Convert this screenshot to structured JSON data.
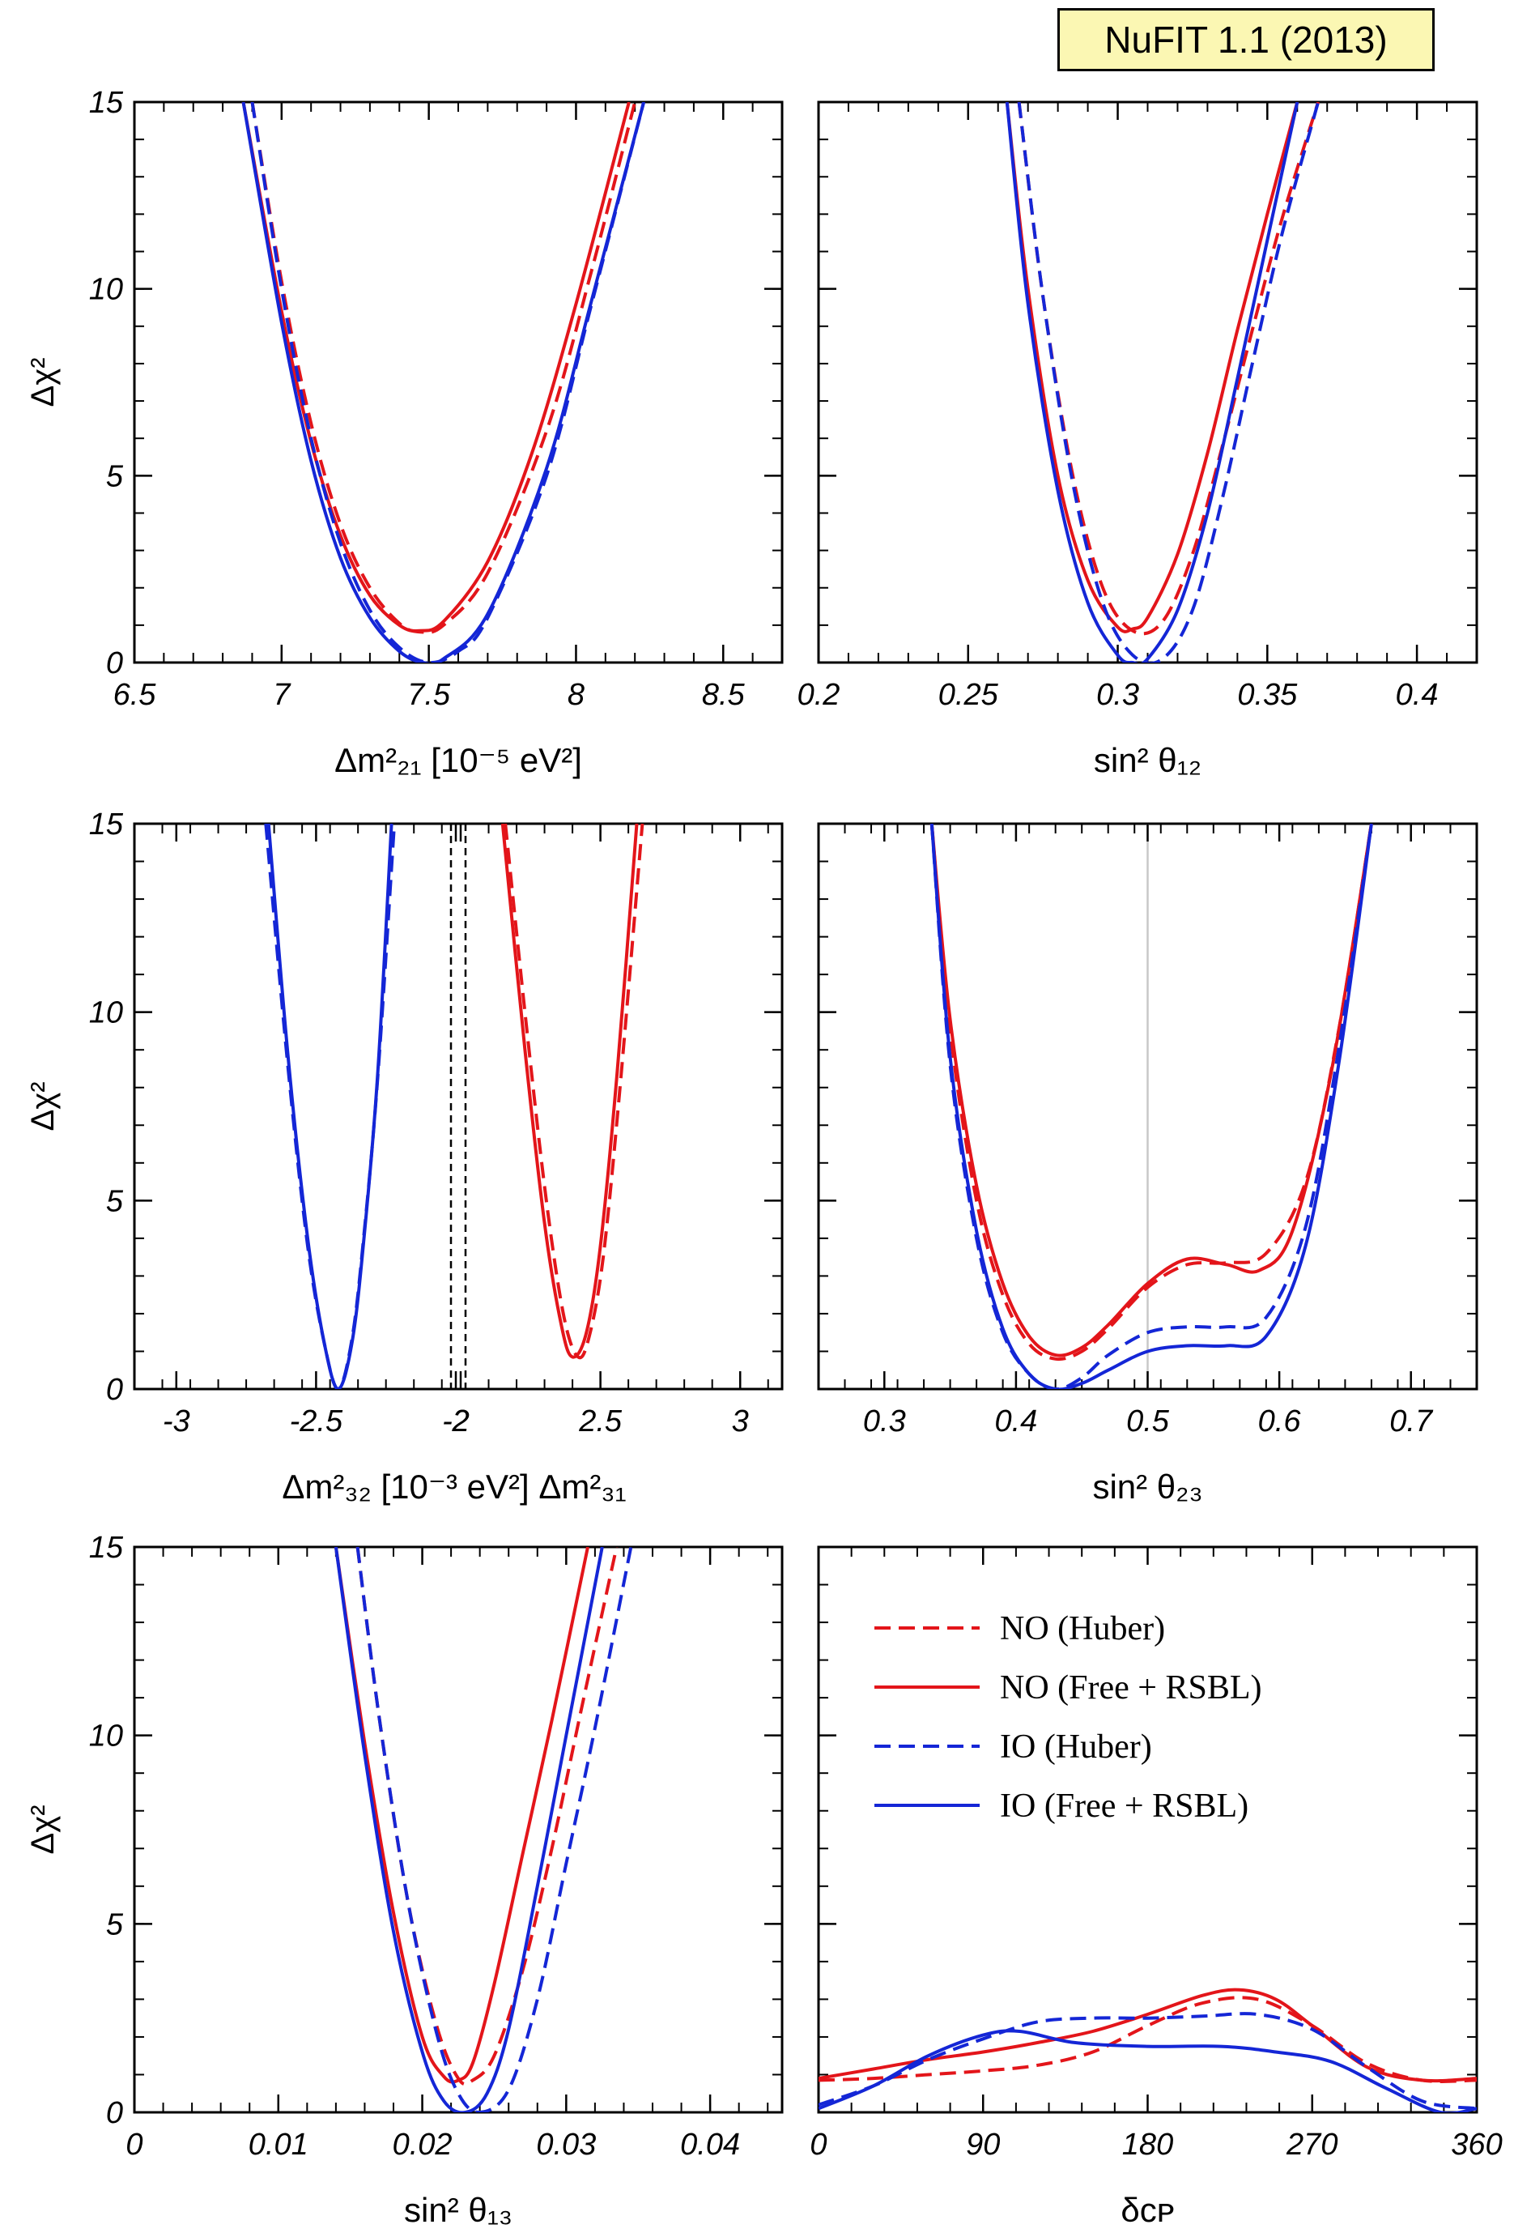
{
  "badge": "NuFIT 1.1 (2013)",
  "colors": {
    "NO": "#e3151a",
    "IO": "#1426d6",
    "axis": "#000000",
    "ref": "#c8c8c8"
  },
  "legend": {
    "placement": "top-right of bottom-right panel",
    "entries": [
      {
        "label": "NO (Huber)",
        "ordering": "NO",
        "style": "dashed"
      },
      {
        "label": "NO (Free + RSBL)",
        "ordering": "NO",
        "style": "solid"
      },
      {
        "label": "IO (Huber)",
        "ordering": "IO",
        "style": "dashed"
      },
      {
        "label": "IO (Free + RSBL)",
        "ordering": "IO",
        "style": "solid"
      }
    ]
  },
  "chart_data": [
    {
      "id": "dm21",
      "type": "line",
      "ylabel": "Δχ²",
      "xlabel": "Δm²₂₁ [10⁻⁵ eV²]",
      "xlim": [
        6.5,
        8.7
      ],
      "ylim": [
        0,
        15
      ],
      "xticks": [
        6.5,
        7,
        7.5,
        8,
        8.5
      ],
      "xticklabels": [
        "6.5",
        "7",
        "7.5",
        "8",
        "8.5"
      ],
      "yticks": [
        0,
        5,
        10,
        15
      ],
      "yticklabels": [
        "0",
        "5",
        "10",
        "15"
      ],
      "series": [
        {
          "ordering": "NO",
          "style": "dashed",
          "x": [
            6.9,
            7.0,
            7.1,
            7.2,
            7.3,
            7.4,
            7.47,
            7.55,
            7.7,
            7.9,
            8.05,
            8.2
          ],
          "y": [
            15,
            10.2,
            6.4,
            3.7,
            2.0,
            1.05,
            0.82,
            1.0,
            2.4,
            6.2,
            10.4,
            15
          ]
        },
        {
          "ordering": "NO",
          "style": "solid",
          "x": [
            6.87,
            7.0,
            7.1,
            7.2,
            7.3,
            7.4,
            7.47,
            7.55,
            7.7,
            7.85,
            8.0,
            8.18
          ],
          "y": [
            15,
            9.4,
            5.9,
            3.4,
            1.8,
            1.0,
            0.85,
            1.1,
            2.7,
            5.6,
            9.6,
            15
          ]
        },
        {
          "ordering": "IO",
          "style": "dashed",
          "x": [
            6.9,
            7.0,
            7.1,
            7.2,
            7.3,
            7.4,
            7.5,
            7.6,
            7.7,
            7.9,
            8.05,
            8.23
          ],
          "y": [
            15,
            10.0,
            6.0,
            3.2,
            1.4,
            0.4,
            0.0,
            0.3,
            1.2,
            5.0,
            9.5,
            15
          ]
        },
        {
          "ordering": "IO",
          "style": "solid",
          "x": [
            6.87,
            7.0,
            7.1,
            7.2,
            7.3,
            7.4,
            7.48,
            7.55,
            7.7,
            7.9,
            8.05,
            8.23
          ],
          "y": [
            15,
            9.1,
            5.4,
            2.8,
            1.2,
            0.3,
            0.0,
            0.1,
            1.3,
            5.2,
            9.6,
            15
          ]
        }
      ]
    },
    {
      "id": "th12",
      "type": "line",
      "xlabel": "sin² θ₁₂",
      "xlim": [
        0.2,
        0.42
      ],
      "ylim": [
        0,
        15
      ],
      "xticks": [
        0.2,
        0.25,
        0.3,
        0.35,
        0.4
      ],
      "xticklabels": [
        "0.2",
        "0.25",
        "0.3",
        "0.35",
        "0.4"
      ],
      "yticks": [
        0,
        5,
        10,
        15
      ],
      "yticklabels": [
        "",
        "",
        "",
        ""
      ],
      "series": [
        {
          "ordering": "NO",
          "style": "dashed",
          "x": [
            0.267,
            0.275,
            0.285,
            0.295,
            0.305,
            0.315,
            0.325,
            0.335,
            0.345,
            0.355,
            0.367
          ],
          "y": [
            15,
            9.8,
            5.0,
            2.0,
            0.85,
            1.1,
            2.9,
            5.8,
            8.9,
            11.9,
            15
          ]
        },
        {
          "ordering": "NO",
          "style": "solid",
          "x": [
            0.263,
            0.27,
            0.28,
            0.29,
            0.3,
            0.305,
            0.31,
            0.32,
            0.33,
            0.34,
            0.35,
            0.36
          ],
          "y": [
            15,
            10.0,
            5.0,
            2.2,
            0.95,
            0.9,
            1.2,
            2.9,
            5.6,
            8.9,
            12.0,
            15
          ]
        },
        {
          "ordering": "IO",
          "style": "dashed",
          "x": [
            0.267,
            0.275,
            0.285,
            0.295,
            0.305,
            0.315,
            0.325,
            0.335,
            0.345,
            0.355,
            0.367
          ],
          "y": [
            15,
            9.8,
            4.8,
            1.6,
            0.2,
            0.1,
            1.4,
            4.4,
            8.0,
            11.5,
            15
          ]
        },
        {
          "ordering": "IO",
          "style": "solid",
          "x": [
            0.263,
            0.27,
            0.28,
            0.29,
            0.3,
            0.305,
            0.31,
            0.32,
            0.33,
            0.34,
            0.35,
            0.36
          ],
          "y": [
            15,
            9.6,
            4.6,
            1.6,
            0.2,
            0.0,
            0.1,
            1.4,
            4.0,
            7.6,
            11.3,
            15
          ]
        }
      ]
    },
    {
      "id": "dm3l",
      "type": "line",
      "ylabel": "Δχ²",
      "xlabel_parts": [
        "Δm²₃₂",
        "[10⁻³ eV²]",
        "Δm²₃₁"
      ],
      "xlim": [
        -3.15,
        3.15
      ],
      "ylim": [
        0,
        15
      ],
      "segments": [
        {
          "range": [
            -3.15,
            -2.0
          ],
          "px": [
            166,
            563
          ]
        },
        {
          "range": [
            2.0,
            3.15
          ],
          "px": [
            569,
            966
          ]
        }
      ],
      "xticks": [
        -3,
        -2.5,
        -2,
        2,
        2.5,
        3
      ],
      "xticklabels": [
        "-3",
        "-2.5",
        "-2",
        "2",
        "2.5",
        "3"
      ],
      "yticks": [
        0,
        5,
        10,
        15
      ],
      "yticklabels": [
        "0",
        "5",
        "10",
        "15"
      ],
      "series": [
        {
          "ordering": "IO",
          "style": "dashed",
          "x": [
            -2.68,
            -2.6,
            -2.53,
            -2.47,
            -2.42,
            -2.37,
            -2.33,
            -2.28,
            -2.22
          ],
          "y": [
            15,
            8.5,
            3.8,
            1.2,
            0.0,
            1.4,
            4.0,
            8.2,
            15
          ]
        },
        {
          "ordering": "IO",
          "style": "solid",
          "x": [
            -2.67,
            -2.6,
            -2.53,
            -2.47,
            -2.42,
            -2.37,
            -2.33,
            -2.28,
            -2.23
          ],
          "y": [
            15,
            8.8,
            4.0,
            1.2,
            0.0,
            1.3,
            3.9,
            8.3,
            15
          ]
        },
        {
          "ordering": "NO",
          "style": "dashed",
          "x": [
            2.16,
            2.24,
            2.31,
            2.37,
            2.42,
            2.46,
            2.51,
            2.57,
            2.65
          ],
          "y": [
            15,
            9.3,
            4.8,
            1.9,
            0.85,
            1.4,
            3.5,
            8.0,
            15
          ]
        },
        {
          "ordering": "NO",
          "style": "solid",
          "x": [
            2.15,
            2.23,
            2.3,
            2.36,
            2.4,
            2.45,
            2.5,
            2.56,
            2.63
          ],
          "y": [
            15,
            9.0,
            4.4,
            1.7,
            0.85,
            1.5,
            3.8,
            8.4,
            15
          ]
        }
      ],
      "divider": "two dashed vertical lines near x = -2 | 2"
    },
    {
      "id": "th23",
      "type": "line",
      "xlabel": "sin² θ₂₃",
      "xlim": [
        0.25,
        0.75
      ],
      "ylim": [
        0,
        15
      ],
      "xticks": [
        0.3,
        0.4,
        0.5,
        0.6,
        0.7
      ],
      "xticklabels": [
        "0.3",
        "0.4",
        "0.5",
        "0.6",
        "0.7"
      ],
      "yticks": [
        0,
        5,
        10,
        15
      ],
      "yticklabels": [
        "",
        "",
        "",
        ""
      ],
      "reference_x": 0.5,
      "series": [
        {
          "ordering": "NO",
          "style": "dashed",
          "x": [
            0.336,
            0.35,
            0.37,
            0.39,
            0.41,
            0.43,
            0.45,
            0.47,
            0.5,
            0.53,
            0.56,
            0.59,
            0.62,
            0.645,
            0.67
          ],
          "y": [
            15,
            9.5,
            5.0,
            2.5,
            1.2,
            0.8,
            1.0,
            1.6,
            2.7,
            3.3,
            3.35,
            3.6,
            5.5,
            9.5,
            15
          ]
        },
        {
          "ordering": "NO",
          "style": "solid",
          "x": [
            0.336,
            0.35,
            0.37,
            0.39,
            0.41,
            0.43,
            0.45,
            0.47,
            0.5,
            0.53,
            0.56,
            0.585,
            0.61,
            0.64,
            0.67
          ],
          "y": [
            15,
            9.8,
            5.4,
            2.8,
            1.4,
            0.9,
            1.1,
            1.7,
            2.8,
            3.45,
            3.3,
            3.15,
            4.2,
            8.5,
            15
          ]
        },
        {
          "ordering": "IO",
          "style": "dashed",
          "x": [
            0.336,
            0.35,
            0.37,
            0.39,
            0.41,
            0.43,
            0.45,
            0.47,
            0.5,
            0.53,
            0.56,
            0.59,
            0.62,
            0.645,
            0.67
          ],
          "y": [
            15,
            8.6,
            4.0,
            1.5,
            0.4,
            0.0,
            0.3,
            0.9,
            1.5,
            1.65,
            1.65,
            1.9,
            4.3,
            9.0,
            15
          ]
        },
        {
          "ordering": "IO",
          "style": "solid",
          "x": [
            0.336,
            0.35,
            0.37,
            0.39,
            0.41,
            0.43,
            0.45,
            0.47,
            0.5,
            0.53,
            0.56,
            0.59,
            0.62,
            0.645,
            0.67
          ],
          "y": [
            15,
            8.8,
            4.2,
            1.6,
            0.4,
            0.0,
            0.15,
            0.5,
            1.0,
            1.15,
            1.15,
            1.4,
            3.8,
            8.6,
            15
          ]
        }
      ]
    },
    {
      "id": "th13",
      "type": "line",
      "ylabel": "Δχ²",
      "xlabel": "sin² θ₁₃",
      "xlim": [
        0,
        0.045
      ],
      "ylim": [
        0,
        15
      ],
      "xticks": [
        0,
        0.01,
        0.02,
        0.03,
        0.04
      ],
      "xticklabels": [
        "0",
        "0.01",
        "0.02",
        "0.03",
        "0.04"
      ],
      "yticks": [
        0,
        5,
        10,
        15
      ],
      "yticklabels": [
        "0",
        "5",
        "10",
        "15"
      ],
      "series": [
        {
          "ordering": "NO",
          "style": "dashed",
          "x": [
            0.0155,
            0.017,
            0.019,
            0.021,
            0.0225,
            0.0235,
            0.025,
            0.027,
            0.029,
            0.031,
            0.0335
          ],
          "y": [
            15,
            10.5,
            5.6,
            2.3,
            0.9,
            0.85,
            1.5,
            3.8,
            7.0,
            10.6,
            15
          ]
        },
        {
          "ordering": "NO",
          "style": "solid",
          "x": [
            0.014,
            0.016,
            0.018,
            0.02,
            0.0215,
            0.0225,
            0.0235,
            0.025,
            0.027,
            0.029,
            0.0315
          ],
          "y": [
            15,
            9.8,
            5.3,
            2.0,
            0.95,
            0.85,
            1.3,
            3.4,
            6.9,
            10.4,
            15
          ]
        },
        {
          "ordering": "IO",
          "style": "dashed",
          "x": [
            0.0155,
            0.017,
            0.019,
            0.021,
            0.0225,
            0.024,
            0.026,
            0.028,
            0.03,
            0.032,
            0.0345
          ],
          "y": [
            15,
            10.5,
            5.6,
            2.1,
            0.5,
            0.0,
            0.6,
            3.0,
            6.6,
            10.2,
            15
          ]
        },
        {
          "ordering": "IO",
          "style": "solid",
          "x": [
            0.014,
            0.016,
            0.018,
            0.02,
            0.0215,
            0.023,
            0.0245,
            0.026,
            0.028,
            0.03,
            0.0325
          ],
          "y": [
            15,
            9.5,
            4.8,
            1.6,
            0.3,
            0.0,
            0.5,
            2.2,
            6.0,
            10.0,
            15
          ]
        }
      ]
    },
    {
      "id": "dcp",
      "type": "line",
      "xlabel": "δ_CP",
      "xlim": [
        0,
        360
      ],
      "ylim": [
        0,
        15
      ],
      "xticks": [
        0,
        90,
        180,
        270,
        360
      ],
      "xticklabels": [
        "0",
        "90",
        "180",
        "270",
        "360"
      ],
      "yticks": [
        0,
        5,
        10,
        15
      ],
      "yticklabels": [
        "",
        "",
        "",
        ""
      ],
      "series": [
        {
          "ordering": "NO",
          "style": "dashed",
          "x": [
            0,
            30,
            60,
            90,
            120,
            150,
            180,
            210,
            240,
            270,
            300,
            330,
            360
          ],
          "y": [
            0.85,
            0.9,
            1.0,
            1.1,
            1.25,
            1.6,
            2.3,
            2.9,
            3.0,
            2.3,
            1.3,
            0.85,
            0.85
          ]
        },
        {
          "ordering": "NO",
          "style": "solid",
          "x": [
            0,
            30,
            60,
            90,
            120,
            150,
            180,
            210,
            230,
            250,
            270,
            300,
            330,
            360
          ],
          "y": [
            0.9,
            1.15,
            1.4,
            1.6,
            1.85,
            2.15,
            2.6,
            3.1,
            3.25,
            3.0,
            2.3,
            1.2,
            0.85,
            0.9
          ]
        },
        {
          "ordering": "IO",
          "style": "dashed",
          "x": [
            0,
            30,
            60,
            90,
            120,
            150,
            180,
            210,
            240,
            270,
            300,
            330,
            360
          ],
          "y": [
            0.2,
            0.7,
            1.4,
            1.95,
            2.4,
            2.5,
            2.5,
            2.55,
            2.6,
            2.2,
            1.2,
            0.3,
            0.1
          ]
        },
        {
          "ordering": "IO",
          "style": "solid",
          "x": [
            0,
            30,
            60,
            90,
            110,
            140,
            180,
            220,
            250,
            280,
            310,
            340,
            360
          ],
          "y": [
            0.1,
            0.7,
            1.5,
            2.05,
            2.15,
            1.85,
            1.75,
            1.75,
            1.6,
            1.35,
            0.65,
            0.0,
            0.1
          ]
        }
      ]
    }
  ]
}
